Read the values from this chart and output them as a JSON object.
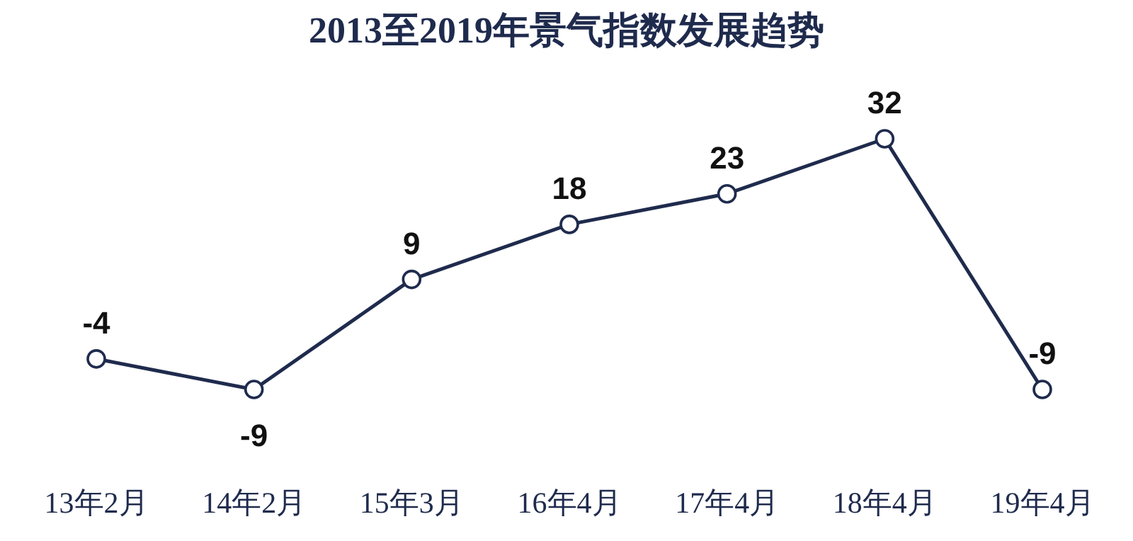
{
  "chart_data": {
    "type": "line",
    "title": "2013至2019年景气指数发展趋势",
    "categories": [
      "13年2月",
      "14年2月",
      "15年3月",
      "16年4月",
      "17年4月",
      "18年4月",
      "19年4月"
    ],
    "series": [
      {
        "color": "#1f2b4d",
        "values": [
          -4,
          -9,
          9,
          18,
          23,
          32,
          -9
        ]
      }
    ],
    "data_labels": true,
    "marker": "circle",
    "line_style": "solid"
  }
}
